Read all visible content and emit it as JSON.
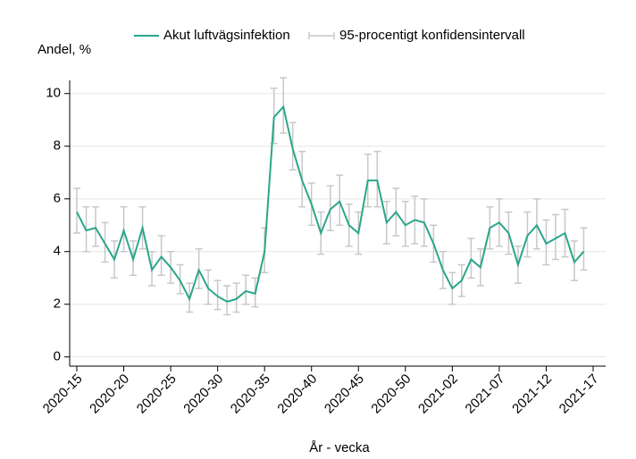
{
  "chart_data": {
    "type": "line",
    "y_label": "Andel, %",
    "x_label": "År - vecka",
    "categories": [
      "2020-15",
      null,
      null,
      null,
      null,
      "2020-20",
      null,
      null,
      null,
      null,
      "2020-25",
      null,
      null,
      null,
      null,
      "2020-30",
      null,
      null,
      null,
      null,
      "2020-35",
      null,
      null,
      null,
      null,
      "2020-40",
      null,
      null,
      null,
      null,
      "2020-45",
      null,
      null,
      null,
      null,
      "2020-50",
      null,
      null,
      null,
      null,
      "2021-02",
      null,
      null,
      null,
      null,
      "2021-07",
      null,
      null,
      null,
      null,
      "2021-12",
      null,
      null,
      null,
      null,
      "2021-17"
    ],
    "series": [
      {
        "name": "Akut luftvägsinfektion",
        "color": "#2aa68a",
        "values": [
          5.5,
          4.8,
          4.9,
          4.3,
          3.7,
          4.8,
          3.7,
          4.9,
          3.3,
          3.8,
          3.4,
          2.9,
          2.2,
          3.3,
          2.6,
          2.3,
          2.1,
          2.2,
          2.5,
          2.4,
          4.0,
          9.1,
          9.5,
          7.9,
          6.7,
          5.8,
          4.7,
          5.6,
          5.9,
          5.0,
          4.7,
          6.7,
          6.7,
          5.1,
          5.5,
          5.0,
          5.2,
          5.1,
          4.3,
          3.3,
          2.6,
          2.9,
          3.7,
          3.4,
          4.9,
          5.1,
          4.7,
          3.5,
          4.6,
          5.0,
          4.3,
          4.5,
          4.7,
          3.6,
          4.0,
          null
        ]
      },
      {
        "name": "95-procentigt konfidensintervall",
        "color": "#c8c8c8",
        "lower": [
          4.7,
          4.0,
          4.2,
          3.6,
          3.0,
          4.0,
          3.1,
          4.1,
          2.7,
          3.1,
          2.8,
          2.4,
          1.7,
          2.6,
          2.0,
          1.8,
          1.6,
          1.7,
          2.0,
          1.9,
          3.2,
          8.1,
          8.5,
          7.1,
          5.7,
          5.0,
          3.9,
          4.8,
          5.0,
          4.2,
          3.9,
          5.7,
          5.7,
          4.3,
          4.6,
          4.2,
          4.3,
          4.2,
          3.6,
          2.6,
          2.0,
          2.3,
          3.0,
          2.7,
          4.1,
          4.2,
          3.9,
          2.8,
          3.8,
          4.1,
          3.5,
          3.7,
          3.8,
          2.9,
          3.3,
          null
        ],
        "upper": [
          6.4,
          5.7,
          5.7,
          5.1,
          4.4,
          5.7,
          4.4,
          5.7,
          4.0,
          4.6,
          4.0,
          3.5,
          2.8,
          4.1,
          3.3,
          2.9,
          2.7,
          2.8,
          3.1,
          3.0,
          4.9,
          10.2,
          10.6,
          8.9,
          7.8,
          6.6,
          5.5,
          6.5,
          6.9,
          5.8,
          5.5,
          7.7,
          7.8,
          5.9,
          6.4,
          5.9,
          6.1,
          6.0,
          5.0,
          4.0,
          3.2,
          3.5,
          4.5,
          4.1,
          5.7,
          6.0,
          5.5,
          4.2,
          5.5,
          6.0,
          5.2,
          5.4,
          5.6,
          4.4,
          4.9,
          null
        ]
      }
    ],
    "ylim": [
      -0.35,
      10.5
    ],
    "yticks": [
      0,
      2,
      4,
      6,
      8,
      10
    ],
    "grid": true
  }
}
